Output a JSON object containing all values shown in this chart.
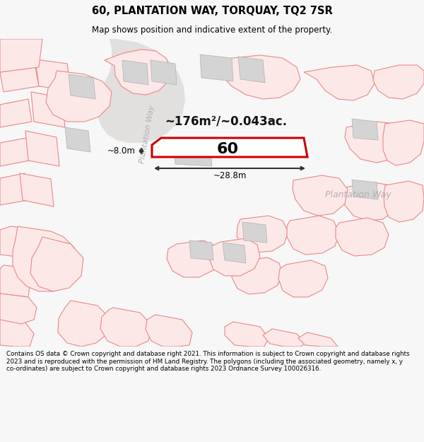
{
  "title": "60, PLANTATION WAY, TORQUAY, TQ2 7SR",
  "subtitle": "Map shows position and indicative extent of the property.",
  "footer": "Contains OS data © Crown copyright and database right 2021. This information is subject to Crown copyright and database rights 2023 and is reproduced with the permission of HM Land Registry. The polygons (including the associated geometry, namely x, y co-ordinates) are subject to Crown copyright and database rights 2023 Ordnance Survey 100026316.",
  "area_label": "~176m²/~0.043ac.",
  "number_label": "60",
  "width_label": "~28.8m",
  "height_label": "~8.0m",
  "road_label_diag": "Plantation Way",
  "road_label_horiz": "Plantation Way",
  "bg_color": "#f7f7f7",
  "map_bg": "#eeecec",
  "plot_fill": "#ffffff",
  "plot_stroke": "#e8000000",
  "building_fill": "#d4d4d4",
  "building_stroke": "#b0b0b0",
  "pink_fill": "#fde8e8",
  "pink_stroke": "#e88888",
  "road_fill": "#e8e4e4",
  "dim_color": "#333333",
  "label_color": "#aaaaaa"
}
